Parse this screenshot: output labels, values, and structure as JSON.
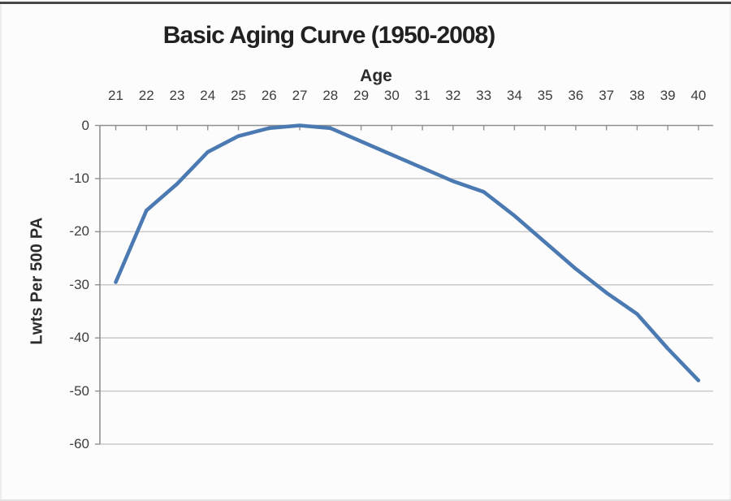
{
  "chart_data": {
    "type": "line",
    "title": "Basic Aging Curve (1950-2008)",
    "x_axis_title": "Age",
    "y_axis_title": "Lwts Per 500 PA",
    "x": [
      21,
      22,
      23,
      24,
      25,
      26,
      27,
      28,
      29,
      30,
      31,
      32,
      33,
      34,
      35,
      36,
      37,
      38,
      39,
      40
    ],
    "values": [
      -29.5,
      -16,
      -11,
      -5,
      -2,
      -0.5,
      0,
      -0.5,
      -3,
      -5.5,
      -8,
      -10.5,
      -12.5,
      -17,
      -22,
      -27,
      -31.5,
      -35.5,
      -42,
      -48
    ],
    "y_ticks": [
      0,
      -10,
      -20,
      -30,
      -40,
      -50,
      -60
    ],
    "ylim": [
      -60,
      0
    ],
    "x_axis_position": "top",
    "grid": "horizontal",
    "legend": "none",
    "line_color": "#4b7ab3",
    "grid_color": "#c9c9c9",
    "axis_color": "#8f8f8f",
    "tick_text_color": "#3d3d3d",
    "title_color": "#212121"
  }
}
